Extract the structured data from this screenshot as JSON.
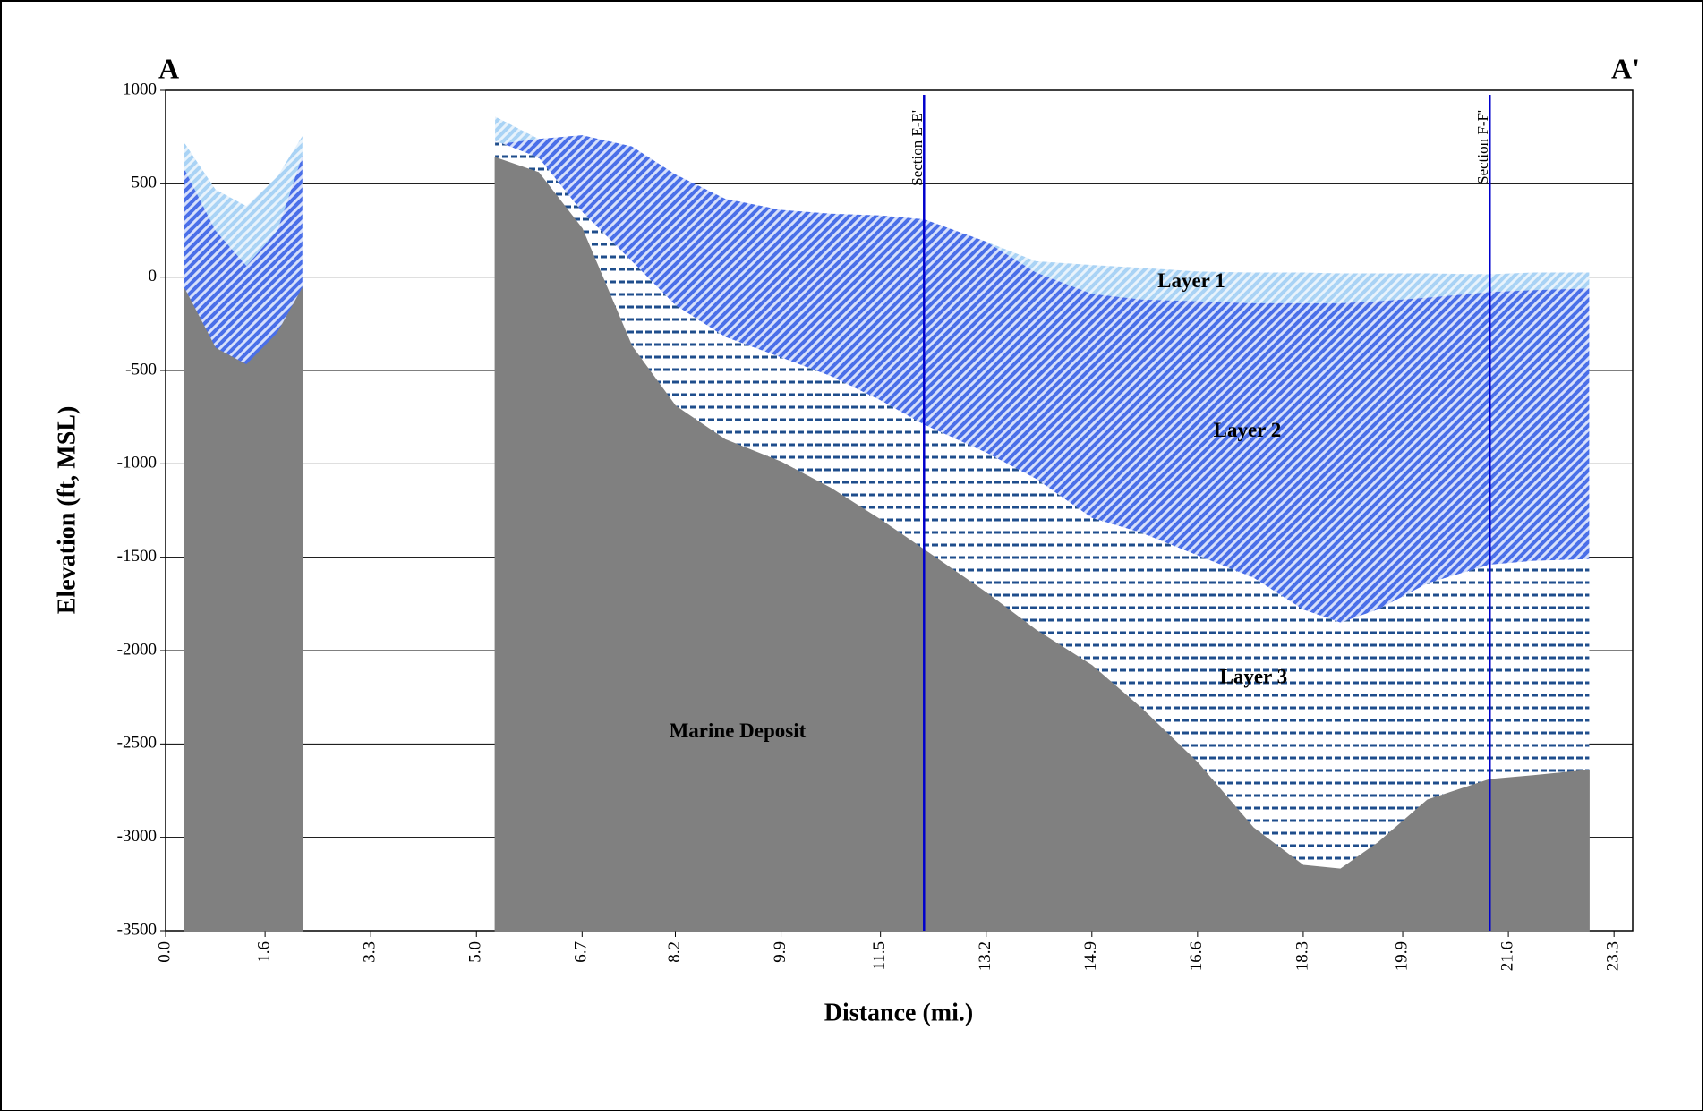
{
  "chart_data": {
    "type": "area",
    "x_axis_label": "Distance (mi.)",
    "y_axis_label": "Elevation (ft, MSL)",
    "corner_left": "A",
    "corner_right": "A'",
    "x": [
      0.3,
      0.8,
      1.3,
      1.8,
      2.2,
      3.7,
      5.3,
      6.0,
      6.7,
      7.5,
      8.2,
      9.0,
      9.9,
      10.7,
      11.5,
      12.2,
      13.2,
      14.0,
      14.9,
      15.7,
      16.6,
      17.5,
      18.3,
      18.9,
      19.5,
      20.3,
      21.3,
      22.0,
      22.9
    ],
    "series": [
      {
        "name": "Layer 1",
        "color": "#a9d3f5",
        "pattern": "diagonal",
        "values": [
          720,
          470,
          380,
          540,
          755,
          null,
          860,
          740,
          760,
          700,
          550,
          420,
          360,
          340,
          330,
          310,
          190,
          85,
          65,
          50,
          30,
          25,
          25,
          20,
          20,
          20,
          15,
          25,
          25
        ]
      },
      {
        "name": "Layer 2",
        "color": "#4a6fe8",
        "pattern": "diagonal",
        "values": [
          580,
          250,
          60,
          250,
          650,
          null,
          710,
          740,
          760,
          700,
          550,
          420,
          360,
          340,
          330,
          310,
          190,
          25,
          -90,
          -120,
          -130,
          -140,
          -140,
          -140,
          -130,
          -110,
          -80,
          -70,
          -60
        ]
      },
      {
        "name": "Layer 3",
        "color": "#1f4e8c",
        "pattern": "dash",
        "values": [
          -60,
          -380,
          -470,
          -300,
          -60,
          null,
          730,
          640,
          350,
          85,
          -150,
          -320,
          -430,
          -530,
          -660,
          -790,
          -940,
          -1080,
          -1290,
          -1370,
          -1490,
          -1610,
          -1780,
          -1850,
          -1780,
          -1640,
          -1540,
          -1520,
          -1510
        ]
      },
      {
        "name": "Marine Deposit",
        "color": "#808080",
        "pattern": "solid",
        "values": [
          -60,
          -380,
          -470,
          -300,
          -60,
          null,
          640,
          560,
          260,
          -370,
          -690,
          -870,
          -990,
          -1130,
          -1300,
          -1460,
          -1690,
          -1890,
          -2080,
          -2310,
          -2600,
          -2950,
          -3150,
          -3170,
          -3030,
          -2800,
          -2690,
          -2670,
          -2640
        ]
      }
    ],
    "sections": [
      {
        "label": "Section E-E'",
        "x": 12.2,
        "color": "#0000cc"
      },
      {
        "label": "Section F-F'",
        "x": 21.3,
        "color": "#0000cc"
      }
    ],
    "xlim": [
      0,
      23.6
    ],
    "ylim": [
      -3500,
      1000
    ],
    "xticks": [
      {
        "value": 0,
        "label": "0.0"
      },
      1.6,
      3.3,
      {
        "value": 5,
        "label": "5.0"
      },
      6.7,
      8.2,
      9.9,
      11.5,
      13.2,
      14.9,
      16.6,
      18.3,
      19.9,
      21.6,
      23.3
    ],
    "yticks": [
      1000,
      500,
      0,
      -500,
      -1000,
      -1500,
      -2000,
      -2500,
      -3000,
      -3500
    ],
    "grid": true
  }
}
